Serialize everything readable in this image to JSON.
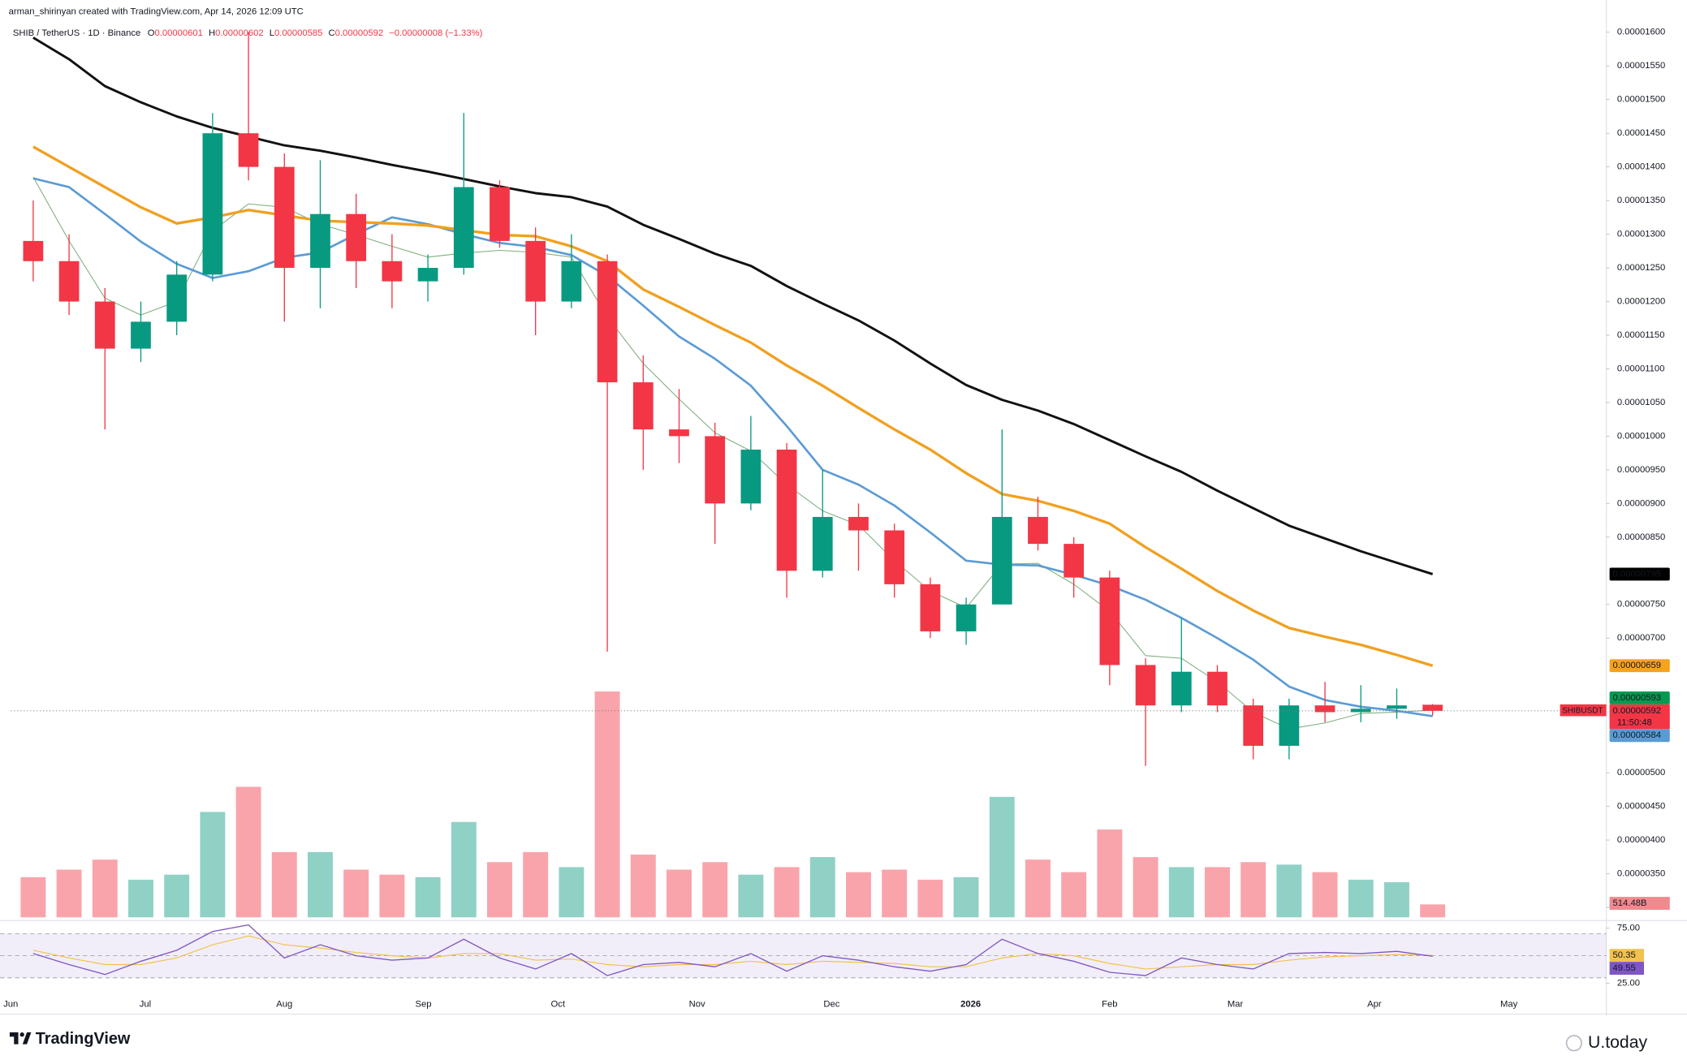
{
  "header": {
    "author_line": "arman_shirinyan created with TradingView.com, Apr 14, 2026 12:09 UTC"
  },
  "legend": {
    "symbol": "SHIB / TetherUS · 1D · Binance",
    "open_label": "O",
    "open": "0.00000601",
    "high_label": "H",
    "high": "0.00000602",
    "low_label": "L",
    "low": "0.00000585",
    "close_label": "C",
    "close": "0.00000592",
    "change": "−0.00000008 (−1.33%)"
  },
  "chart_data": {
    "type": "candlestick",
    "xlim": [
      -0.625,
      43.75
    ],
    "xticks": [
      {
        "value": -0.625,
        "label": "Jun"
      },
      {
        "value": 3.125,
        "label": "Jul"
      },
      {
        "value": 7,
        "label": "Aug"
      },
      {
        "value": 10.875,
        "label": "Sep"
      },
      {
        "value": 14.625,
        "label": "Oct"
      },
      {
        "value": 18.5,
        "label": "Nov"
      },
      {
        "value": 22.25,
        "label": "Dec"
      },
      {
        "value": 26.125,
        "label": "2026"
      },
      {
        "value": 30,
        "label": "Feb"
      },
      {
        "value": 33.5,
        "label": "Mar"
      },
      {
        "value": 37.375,
        "label": "Apr"
      },
      {
        "value": 41.125,
        "label": "May"
      }
    ],
    "ylim": [
      2.82e-06,
      1.616e-05
    ],
    "yticks": [
      {
        "value": 1.6e-05,
        "label": "0.00001600"
      },
      {
        "value": 1.55e-05,
        "label": "0.00001550"
      },
      {
        "value": 1.5e-05,
        "label": "0.00001500"
      },
      {
        "value": 1.45e-05,
        "label": "0.00001450"
      },
      {
        "value": 1.4e-05,
        "label": "0.00001400"
      },
      {
        "value": 1.35e-05,
        "label": "0.00001350"
      },
      {
        "value": 1.3e-05,
        "label": "0.00001300"
      },
      {
        "value": 1.25e-05,
        "label": "0.00001250"
      },
      {
        "value": 1.2e-05,
        "label": "0.00001200"
      },
      {
        "value": 1.15e-05,
        "label": "0.00001150"
      },
      {
        "value": 1.1e-05,
        "label": "0.00001100"
      },
      {
        "value": 1.05e-05,
        "label": "0.00001050"
      },
      {
        "value": 1e-05,
        "label": "0.00001000"
      },
      {
        "value": 9.5e-06,
        "label": "0.00000950"
      },
      {
        "value": 9e-06,
        "label": "0.00000900"
      },
      {
        "value": 8.5e-06,
        "label": "0.00000850"
      },
      {
        "value": 7.5e-06,
        "label": "0.00000750"
      },
      {
        "value": 7e-06,
        "label": "0.00000700"
      },
      {
        "value": 5e-06,
        "label": "0.00000500"
      },
      {
        "value": 4.5e-06,
        "label": "0.00000450"
      },
      {
        "value": 4e-06,
        "label": "0.00000400"
      },
      {
        "value": 3.5e-06,
        "label": "0.00000350"
      },
      {
        "value": 3e-06,
        "label": "0.00000300"
      }
    ],
    "candles": {
      "up_color": "#089981",
      "down_color": "#f23645",
      "open": [
        1.29e-05,
        1.26e-05,
        1.2e-05,
        1.13e-05,
        1.17e-05,
        1.24e-05,
        1.45e-05,
        1.4e-05,
        1.25e-05,
        1.33e-05,
        1.26e-05,
        1.23e-05,
        1.25e-05,
        1.37e-05,
        1.29e-05,
        1.2e-05,
        1.26e-05,
        1.08e-05,
        1.01e-05,
        1e-05,
        9e-06,
        9.8e-06,
        8e-06,
        8.8e-06,
        8.6e-06,
        7.8e-06,
        7.1e-06,
        7.5e-06,
        8.8e-06,
        8.4e-06,
        7.9e-06,
        6.6e-06,
        6e-06,
        6.5e-06,
        6e-06,
        5.4e-06,
        6e-06,
        5.9e-06,
        5.95e-06,
        6.01e-06
      ],
      "high": [
        1.35e-05,
        1.3e-05,
        1.22e-05,
        1.2e-05,
        1.26e-05,
        1.48e-05,
        1.6e-05,
        1.42e-05,
        1.41e-05,
        1.36e-05,
        1.3e-05,
        1.27e-05,
        1.48e-05,
        1.38e-05,
        1.31e-05,
        1.3e-05,
        1.27e-05,
        1.12e-05,
        1.07e-05,
        1.02e-05,
        1.03e-05,
        9.9e-06,
        9.5e-06,
        9e-06,
        8.7e-06,
        7.9e-06,
        7.6e-06,
        1.01e-05,
        9.1e-06,
        8.5e-06,
        8e-06,
        6.7e-06,
        7.3e-06,
        6.6e-06,
        6.1e-06,
        6.1e-06,
        6.35e-06,
        6.3e-06,
        6.25e-06,
        6.02e-06
      ],
      "low": [
        1.23e-05,
        1.18e-05,
        1.01e-05,
        1.11e-05,
        1.15e-05,
        1.23e-05,
        1.38e-05,
        1.17e-05,
        1.19e-05,
        1.22e-05,
        1.19e-05,
        1.2e-05,
        1.24e-05,
        1.28e-05,
        1.15e-05,
        1.19e-05,
        6.8e-06,
        9.5e-06,
        9.6e-06,
        8.4e-06,
        8.9e-06,
        7.6e-06,
        7.9e-06,
        8e-06,
        7.6e-06,
        7e-06,
        6.9e-06,
        7.5e-06,
        8.3e-06,
        7.6e-06,
        6.3e-06,
        5.1e-06,
        5.9e-06,
        5.9e-06,
        5.2e-06,
        5.2e-06,
        5.75e-06,
        5.75e-06,
        5.8e-06,
        5.85e-06
      ],
      "close": [
        1.26e-05,
        1.2e-05,
        1.13e-05,
        1.17e-05,
        1.24e-05,
        1.45e-05,
        1.4e-05,
        1.25e-05,
        1.33e-05,
        1.26e-05,
        1.23e-05,
        1.25e-05,
        1.37e-05,
        1.29e-05,
        1.2e-05,
        1.26e-05,
        1.08e-05,
        1.01e-05,
        1e-05,
        9e-06,
        9.8e-06,
        8e-06,
        8.8e-06,
        8.6e-06,
        7.8e-06,
        7.1e-06,
        7.5e-06,
        8.8e-06,
        8.4e-06,
        7.9e-06,
        6.6e-06,
        6e-06,
        6.5e-06,
        6e-06,
        5.4e-06,
        6e-06,
        5.9e-06,
        5.95e-06,
        6e-06,
        5.92e-06
      ]
    },
    "series": [
      {
        "color": "#7fae7f",
        "width": 0.8,
        "values": [
          1.385e-05,
          1.29e-05,
          1.205e-05,
          1.18e-05,
          1.2e-05,
          1.305e-05,
          1.345e-05,
          1.34e-05,
          1.315e-05,
          1.299e-05,
          1.282e-05,
          1.266e-05,
          1.272e-05,
          1.276e-05,
          1.273e-05,
          1.266e-05,
          1.177e-05,
          1.108e-05,
          1.055e-05,
          1.005e-05,
          9.78e-06,
          9.28e-06,
          8.89e-06,
          8.68e-06,
          8.15e-06,
          7.7e-06,
          7.45e-06,
          8.1e-06,
          8.11e-06,
          7.8e-06,
          7.4e-06,
          6.74e-06,
          6.7e-06,
          6.35e-06,
          5.9e-06,
          5.65e-06,
          5.74e-06,
          5.88e-06,
          5.9e-06,
          5.93e-06
        ]
      },
      {
        "color": "#5b9bd5",
        "width": 2,
        "values": [
          1.383e-05,
          1.37e-05,
          1.33e-05,
          1.289e-05,
          1.256e-05,
          1.235e-05,
          1.245e-05,
          1.265e-05,
          1.273e-05,
          1.3e-05,
          1.325e-05,
          1.315e-05,
          1.3e-05,
          1.287e-05,
          1.281e-05,
          1.269e-05,
          1.238e-05,
          1.194e-05,
          1.148e-05,
          1.115e-05,
          1.075e-05,
          1.015e-05,
          9.5e-06,
          9.28e-06,
          8.97e-06,
          8.57e-06,
          8.15e-06,
          8.09e-06,
          8.08e-06,
          7.94e-06,
          7.78e-06,
          7.57e-06,
          7.3e-06,
          7e-06,
          6.68e-06,
          6.28e-06,
          6.08e-06,
          5.98e-06,
          5.92e-06,
          5.84e-06
        ]
      },
      {
        "color": "#f0a020",
        "width": 2.5,
        "values": [
          1.43e-05,
          1.4e-05,
          1.37e-05,
          1.34e-05,
          1.316e-05,
          1.325e-05,
          1.336e-05,
          1.328e-05,
          1.32e-05,
          1.318e-05,
          1.316e-05,
          1.313e-05,
          1.306e-05,
          1.299e-05,
          1.297e-05,
          1.282e-05,
          1.26e-05,
          1.218e-05,
          1.192e-05,
          1.165e-05,
          1.139e-05,
          1.105e-05,
          1.075e-05,
          1.042e-05,
          1.01e-05,
          9.8e-06,
          9.45e-06,
          9.14e-06,
          9.04e-06,
          8.89e-06,
          8.7e-06,
          8.35e-06,
          8.03e-06,
          7.7e-06,
          7.41e-06,
          7.15e-06,
          7.02e-06,
          6.9e-06,
          6.75e-06,
          6.59e-06
        ]
      },
      {
        "color": "#111111",
        "width": 2.2,
        "values": [
          1.592e-05,
          1.56e-05,
          1.52e-05,
          1.496e-05,
          1.475e-05,
          1.458e-05,
          1.445e-05,
          1.432e-05,
          1.424e-05,
          1.414e-05,
          1.403e-05,
          1.393e-05,
          1.382e-05,
          1.371e-05,
          1.361e-05,
          1.355e-05,
          1.341e-05,
          1.314e-05,
          1.293e-05,
          1.271e-05,
          1.253e-05,
          1.223e-05,
          1.197e-05,
          1.172e-05,
          1.142e-05,
          1.108e-05,
          1.076e-05,
          1.054e-05,
          1.038e-05,
          1.018e-05,
          9.94e-06,
          9.7e-06,
          9.47e-06,
          9.19e-06,
          8.93e-06,
          8.67e-06,
          8.48e-06,
          8.29e-06,
          8.12e-06,
          7.95e-06
        ]
      }
    ],
    "price_tags": [
      {
        "value": 7.95e-06,
        "label": "0.00000795",
        "color": "#000000"
      },
      {
        "value": 6.59e-06,
        "label": "0.00000659",
        "color": "#f7a21b"
      },
      {
        "value": 5.93e-06,
        "label": "0.00000593",
        "color": "#089950"
      },
      {
        "value": 5.84e-06,
        "label": "0.00000584",
        "color": "#5b9bd5"
      }
    ],
    "last_price": {
      "value": 5.92e-06,
      "label": "0.00000592",
      "symbol": "SHIBUSDT",
      "countdown": "11:50:48",
      "color": "#f23645"
    },
    "volume": {
      "up_color": "rgba(8,153,129,0.45)",
      "down_color": "rgba(242,54,69,0.45)",
      "values": [
        1600,
        1900,
        2300,
        1500,
        1700,
        4200,
        5200,
        2600,
        2600,
        1900,
        1700,
        1600,
        3800,
        2200,
        2600,
        2000,
        9000,
        2500,
        1900,
        2200,
        1700,
        2000,
        2400,
        1800,
        1900,
        1500,
        1600,
        4800,
        2300,
        1800,
        3500,
        2400,
        2000,
        2000,
        2200,
        2100,
        1800,
        1500,
        1400,
        514.48
      ],
      "last_label": "514.48B"
    },
    "rsi": {
      "ylim": [
        0,
        80
      ],
      "yticks": [
        {
          "value": 75,
          "label": "75.00"
        },
        {
          "value": 25,
          "label": "25.00"
        }
      ],
      "band": [
        30,
        70
      ],
      "color": "#7e57c2",
      "values": [
        52,
        42,
        33,
        45,
        55,
        72,
        78,
        48,
        60,
        50,
        46,
        48,
        65,
        48,
        38,
        52,
        32,
        42,
        44,
        40,
        52,
        36,
        50,
        46,
        40,
        36,
        42,
        65,
        52,
        45,
        35,
        32,
        48,
        42,
        38,
        52,
        53,
        52,
        54,
        49.55
      ],
      "last_label": "49.55",
      "ma": {
        "color": "#f2c14e",
        "values": [
          55,
          48,
          42,
          42,
          48,
          60,
          68,
          60,
          57,
          53,
          50,
          48,
          52,
          52,
          46,
          47,
          42,
          40,
          42,
          42,
          45,
          42,
          45,
          44,
          43,
          40,
          40,
          48,
          52,
          50,
          43,
          38,
          40,
          42,
          42,
          46,
          49,
          50,
          51,
          50.35
        ],
        "last_label": "50.35"
      }
    }
  },
  "footer": {
    "logo": "TradingView",
    "watermark": "U.today"
  }
}
